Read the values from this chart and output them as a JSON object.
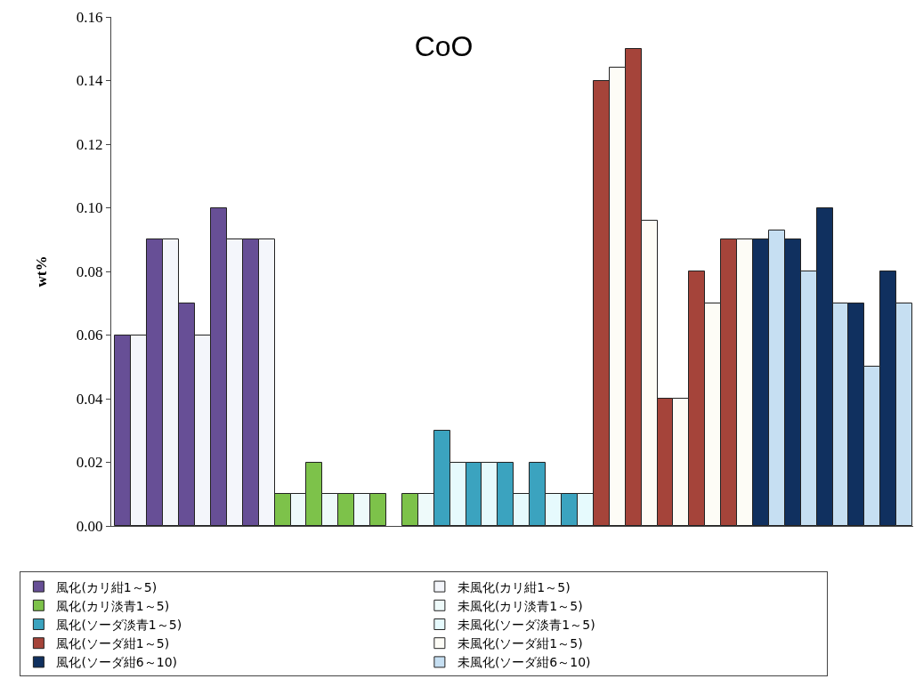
{
  "chart_data": {
    "type": "bar",
    "title": "CoO",
    "ylabel": "wt%",
    "categories": [
      null,
      null,
      null,
      null,
      null,
      null,
      null,
      null,
      null,
      null,
      null,
      null,
      null,
      null,
      null,
      null,
      null,
      null,
      null,
      null,
      null,
      null,
      null,
      null,
      null,
      null,
      null,
      null,
      null,
      null,
      null,
      null,
      null,
      null,
      null,
      null,
      null,
      null,
      null,
      null,
      null,
      null,
      null,
      null,
      null,
      null,
      null,
      null,
      null,
      null
    ],
    "series": [
      {
        "name": "風化(カリ紺1～5)",
        "color": "#674f96",
        "values": [
          0.06,
          null,
          0.09,
          null,
          0.07,
          null,
          0.1,
          null,
          0.09,
          null,
          null,
          null,
          null,
          null,
          null,
          null,
          null,
          null,
          null,
          null,
          null,
          null,
          null,
          null,
          null,
          null,
          null,
          null,
          null,
          null,
          null,
          null,
          null,
          null,
          null,
          null,
          null,
          null,
          null,
          null,
          null,
          null,
          null,
          null,
          null,
          null,
          null,
          null,
          null,
          null
        ]
      },
      {
        "name": "未風化(カリ紺1～5)",
        "color": "#f4f6fb",
        "values": [
          null,
          0.06,
          null,
          0.09,
          null,
          0.06,
          null,
          0.09,
          null,
          0.09,
          null,
          null,
          null,
          null,
          null,
          null,
          null,
          null,
          null,
          null,
          null,
          null,
          null,
          null,
          null,
          null,
          null,
          null,
          null,
          null,
          null,
          null,
          null,
          null,
          null,
          null,
          null,
          null,
          null,
          null,
          null,
          null,
          null,
          null,
          null,
          null,
          null,
          null,
          null,
          null
        ]
      },
      {
        "name": "風化(カリ淡青1～5)",
        "color": "#7dc24a",
        "values": [
          null,
          null,
          null,
          null,
          null,
          null,
          null,
          null,
          null,
          null,
          0.01,
          null,
          0.02,
          null,
          0.01,
          null,
          0.01,
          null,
          0.01,
          null,
          null,
          null,
          null,
          null,
          null,
          null,
          null,
          null,
          null,
          null,
          null,
          null,
          null,
          null,
          null,
          null,
          null,
          null,
          null,
          null,
          null,
          null,
          null,
          null,
          null,
          null,
          null,
          null,
          null,
          null
        ]
      },
      {
        "name": "未風化(カリ淡青1～5)",
        "color": "#eefafa",
        "values": [
          null,
          null,
          null,
          null,
          null,
          null,
          null,
          null,
          null,
          null,
          null,
          0.01,
          null,
          0.01,
          null,
          0.01,
          null,
          null,
          null,
          0.01,
          null,
          null,
          null,
          null,
          null,
          null,
          null,
          null,
          null,
          null,
          null,
          null,
          null,
          null,
          null,
          null,
          null,
          null,
          null,
          null,
          null,
          null,
          null,
          null,
          null,
          null,
          null,
          null,
          null,
          null
        ]
      },
      {
        "name": "風化(ソーダ淡青1～5)",
        "color": "#3ba3bf",
        "values": [
          null,
          null,
          null,
          null,
          null,
          null,
          null,
          null,
          null,
          null,
          null,
          null,
          null,
          null,
          null,
          null,
          null,
          null,
          null,
          null,
          0.03,
          null,
          0.02,
          null,
          0.02,
          null,
          0.02,
          null,
          0.01,
          null,
          null,
          null,
          null,
          null,
          null,
          null,
          null,
          null,
          null,
          null,
          null,
          null,
          null,
          null,
          null,
          null,
          null,
          null,
          null,
          null
        ]
      },
      {
        "name": "未風化(ソーダ淡青1～5)",
        "color": "#e6fafd",
        "values": [
          null,
          null,
          null,
          null,
          null,
          null,
          null,
          null,
          null,
          null,
          null,
          null,
          null,
          null,
          null,
          null,
          null,
          null,
          null,
          null,
          null,
          0.02,
          null,
          0.02,
          null,
          0.01,
          null,
          0.01,
          null,
          0.01,
          null,
          null,
          null,
          null,
          null,
          null,
          null,
          null,
          null,
          null,
          null,
          null,
          null,
          null,
          null,
          null,
          null,
          null,
          null,
          null
        ]
      },
      {
        "name": "風化(ソーダ紺1～5)",
        "color": "#a5443a",
        "values": [
          null,
          null,
          null,
          null,
          null,
          null,
          null,
          null,
          null,
          null,
          null,
          null,
          null,
          null,
          null,
          null,
          null,
          null,
          null,
          null,
          null,
          null,
          null,
          null,
          null,
          null,
          null,
          null,
          null,
          null,
          0.14,
          null,
          0.15,
          null,
          0.04,
          null,
          0.08,
          null,
          0.09,
          null,
          null,
          null,
          null,
          null,
          null,
          null,
          null,
          null,
          null,
          null
        ]
      },
      {
        "name": "未風化(ソーダ紺1～5)",
        "color": "#fdfcf6",
        "values": [
          null,
          null,
          null,
          null,
          null,
          null,
          null,
          null,
          null,
          null,
          null,
          null,
          null,
          null,
          null,
          null,
          null,
          null,
          null,
          null,
          null,
          null,
          null,
          null,
          null,
          null,
          null,
          null,
          null,
          null,
          null,
          0.144,
          null,
          0.096,
          null,
          0.04,
          null,
          0.07,
          null,
          0.09,
          null,
          null,
          null,
          null,
          null,
          null,
          null,
          null,
          null,
          null
        ]
      },
      {
        "name": "風化(ソーダ紺6～10)",
        "color": "#10305f",
        "values": [
          null,
          null,
          null,
          null,
          null,
          null,
          null,
          null,
          null,
          null,
          null,
          null,
          null,
          null,
          null,
          null,
          null,
          null,
          null,
          null,
          null,
          null,
          null,
          null,
          null,
          null,
          null,
          null,
          null,
          null,
          null,
          null,
          null,
          null,
          null,
          null,
          null,
          null,
          null,
          null,
          0.09,
          null,
          0.09,
          null,
          0.1,
          null,
          0.07,
          null,
          0.08,
          null
        ]
      },
      {
        "name": "未風化(ソーダ紺6～10)",
        "color": "#c6dff2",
        "values": [
          null,
          null,
          null,
          null,
          null,
          null,
          null,
          null,
          null,
          null,
          null,
          null,
          null,
          null,
          null,
          null,
          null,
          null,
          null,
          null,
          null,
          null,
          null,
          null,
          null,
          null,
          null,
          null,
          null,
          null,
          null,
          null,
          null,
          null,
          null,
          null,
          null,
          null,
          null,
          null,
          null,
          0.093,
          null,
          0.08,
          null,
          0.07,
          null,
          0.05,
          null,
          0.07
        ]
      }
    ],
    "ylim": [
      0,
      0.16
    ],
    "yticks": [
      {
        "value": 0,
        "label": "0.00"
      },
      {
        "value": 0.02,
        "label": "0.02"
      },
      {
        "value": 0.04,
        "label": "0.04"
      },
      {
        "value": 0.06,
        "label": "0.06"
      },
      {
        "value": 0.08,
        "label": "0.08"
      },
      {
        "value": 0.1,
        "label": "0.10"
      },
      {
        "value": 0.12,
        "label": "0.12"
      },
      {
        "value": 0.14,
        "label": "0.14"
      },
      {
        "value": 0.16,
        "label": "0.16"
      }
    ],
    "grid": false,
    "legend": "bottom"
  }
}
